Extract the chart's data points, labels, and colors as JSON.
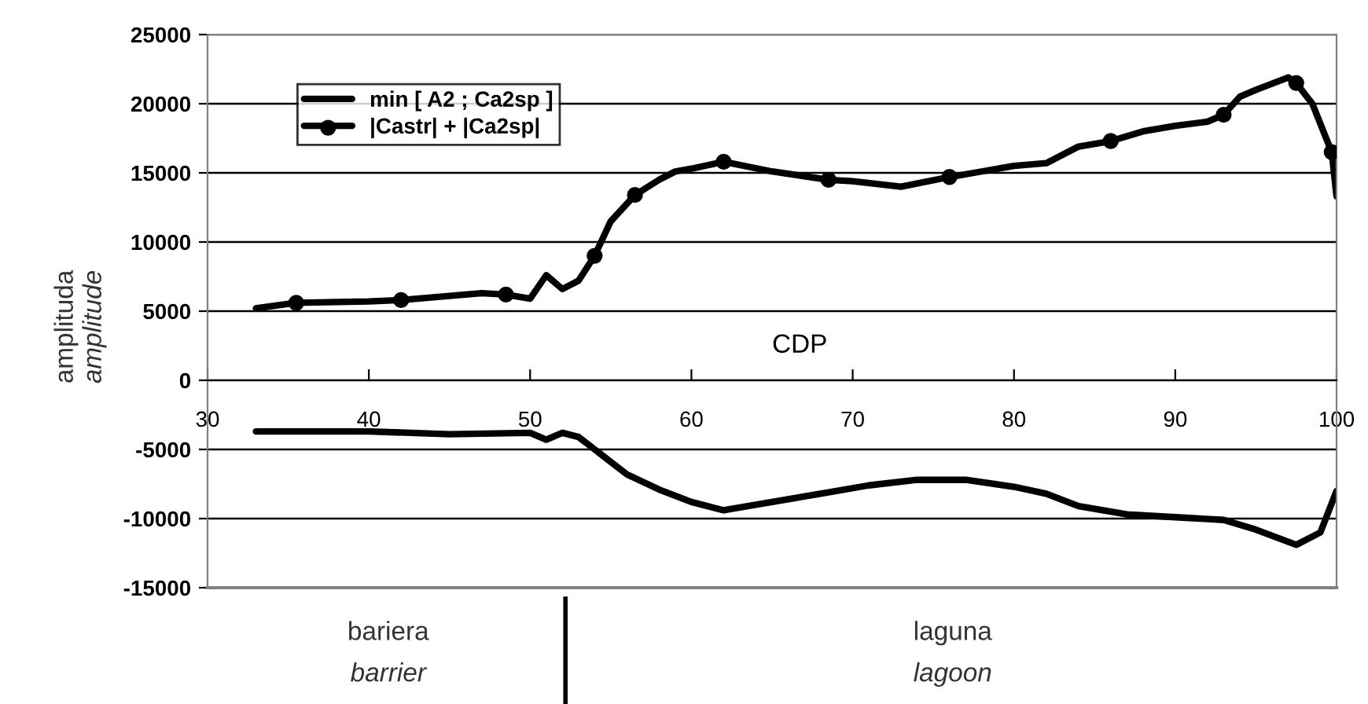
{
  "chart_data": {
    "type": "line",
    "xlabel": "CDP",
    "ylabel": "amplituda\namplitude",
    "xlim": [
      30,
      100
    ],
    "xticks": [
      30,
      40,
      50,
      60,
      70,
      80,
      90,
      100
    ],
    "ylim": [
      -15000,
      25000
    ],
    "yticks": [
      -15000,
      -10000,
      -5000,
      0,
      5000,
      10000,
      15000,
      20000,
      25000
    ],
    "grid": "y",
    "legend": "top left",
    "line_style": "solid",
    "series": [
      {
        "name": "min [ A2 ; Ca2sp ]",
        "color": "#000000",
        "marker": "none",
        "x": [
          33,
          40,
          45,
          50,
          51,
          52,
          53,
          54,
          56,
          58,
          60,
          62,
          65,
          68,
          71,
          74,
          77,
          80,
          82,
          84,
          87,
          90,
          93,
          95,
          97.5,
          99,
          100
        ],
        "values": [
          -3700,
          -3700,
          -3900,
          -3800,
          -4300,
          -3800,
          -4100,
          -5000,
          -6800,
          -7900,
          -8800,
          -9400,
          -8800,
          -8200,
          -7600,
          -7200,
          -7200,
          -7700,
          -8200,
          -9100,
          -9700,
          -9900,
          -10100,
          -10800,
          -11900,
          -11000,
          -8000
        ]
      },
      {
        "name": "|Castr| + |Ca2sp|",
        "color": "#000000",
        "marker": "none",
        "x": [
          33,
          35.5,
          40,
          42,
          45,
          47,
          48.5,
          50,
          51,
          52,
          53,
          54,
          55,
          56.5,
          58,
          59,
          60,
          62,
          65,
          68.5,
          70,
          73,
          76,
          78,
          80,
          82,
          84,
          86,
          88,
          90,
          92,
          93,
          94,
          95,
          97,
          97.5,
          98.5,
          99.7,
          100
        ],
        "values": [
          5200,
          5600,
          5700,
          5800,
          6100,
          6300,
          6200,
          5900,
          7600,
          6600,
          7200,
          9000,
          11500,
          13400,
          14500,
          15100,
          15300,
          15800,
          15100,
          14500,
          14400,
          14000,
          14700,
          15100,
          15500,
          15700,
          16900,
          17300,
          18000,
          18400,
          18700,
          19200,
          20500,
          21000,
          21900,
          21500,
          20000,
          16500,
          13300
        ]
      },
      {
        "type": "scatter",
        "color": "#000000",
        "marker": "circle",
        "x": [
          35.5,
          42,
          48.5,
          54,
          56.5,
          62,
          68.5,
          76,
          86,
          93,
          97.5,
          99.7
        ],
        "values": [
          5600,
          5800,
          6200,
          9000,
          13400,
          15800,
          14500,
          14700,
          17300,
          19200,
          21500,
          16500
        ]
      }
    ],
    "annotations": [
      "bariera\nbarrier",
      "laguna\nlagoon"
    ]
  }
}
